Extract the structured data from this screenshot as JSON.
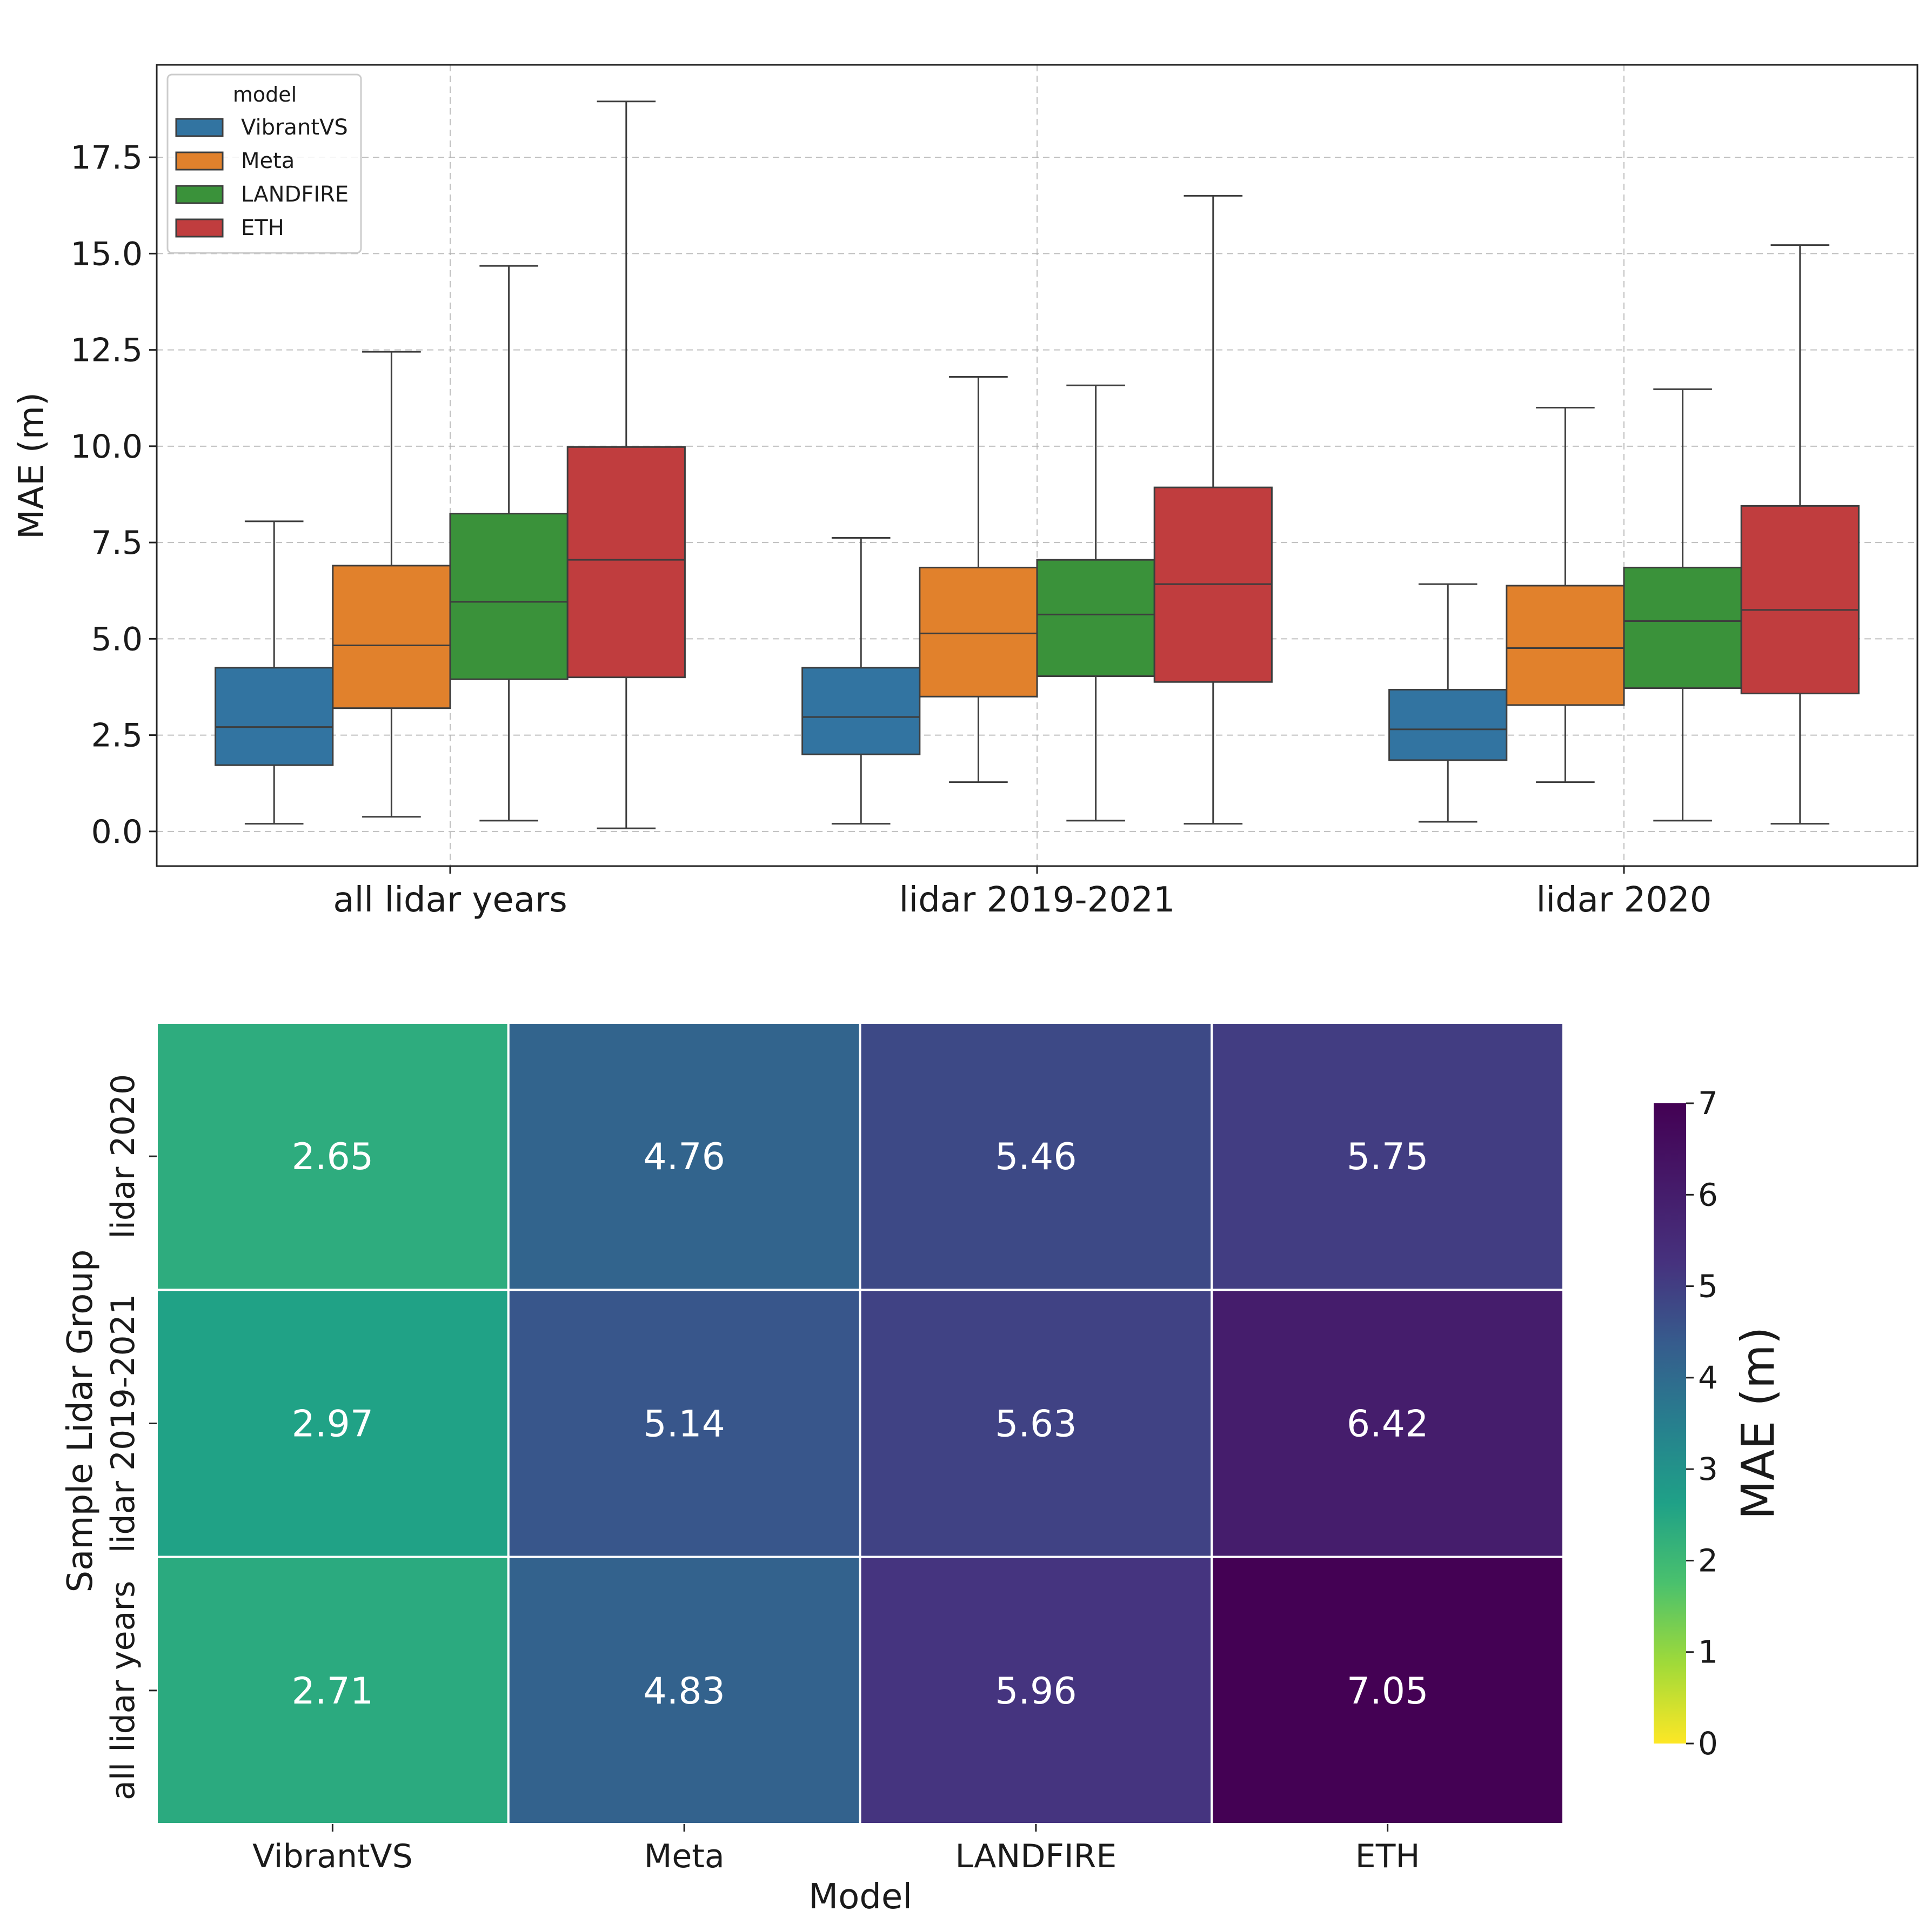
{
  "chart_data": [
    {
      "type": "box",
      "title": "",
      "xlabel": "",
      "ylabel": "MAE (m)",
      "ylim": [
        -0.9,
        19.9
      ],
      "yticks": [
        0.0,
        2.5,
        5.0,
        7.5,
        10.0,
        12.5,
        15.0,
        17.5
      ],
      "ytick_labels": [
        "0.0",
        "2.5",
        "5.0",
        "7.5",
        "10.0",
        "12.5",
        "15.0",
        "17.5"
      ],
      "grid": true,
      "legend": {
        "title": "model",
        "position": "top-left"
      },
      "categories": [
        "all lidar years",
        "lidar 2019-2021",
        "lidar 2020"
      ],
      "series": [
        {
          "name": "VibrantVS",
          "color": "#3274a1",
          "boxes": [
            {
              "whislo": 0.2,
              "q1": 1.72,
              "med": 2.71,
              "q3": 4.25,
              "whishi": 8.05
            },
            {
              "whislo": 0.2,
              "q1": 2.0,
              "med": 2.97,
              "q3": 4.25,
              "whishi": 7.62
            },
            {
              "whislo": 0.25,
              "q1": 1.85,
              "med": 2.65,
              "q3": 3.68,
              "whishi": 6.42
            }
          ]
        },
        {
          "name": "Meta",
          "color": "#e1812c",
          "boxes": [
            {
              "whislo": 0.38,
              "q1": 3.2,
              "med": 4.83,
              "q3": 6.9,
              "whishi": 12.45
            },
            {
              "whislo": 1.28,
              "q1": 3.5,
              "med": 5.14,
              "q3": 6.85,
              "whishi": 11.8
            },
            {
              "whislo": 1.28,
              "q1": 3.28,
              "med": 4.76,
              "q3": 6.38,
              "whishi": 11.0
            }
          ]
        },
        {
          "name": "LANDFIRE",
          "color": "#3a923a",
          "boxes": [
            {
              "whislo": 0.28,
              "q1": 3.95,
              "med": 5.96,
              "q3": 8.25,
              "whishi": 14.68
            },
            {
              "whislo": 0.28,
              "q1": 4.03,
              "med": 5.63,
              "q3": 7.05,
              "whishi": 11.58
            },
            {
              "whislo": 0.28,
              "q1": 3.72,
              "med": 5.46,
              "q3": 6.85,
              "whishi": 11.48
            }
          ]
        },
        {
          "name": "ETH",
          "color": "#c03d3e",
          "boxes": [
            {
              "whislo": 0.08,
              "q1": 4.0,
              "med": 7.05,
              "q3": 9.98,
              "whishi": 18.95
            },
            {
              "whislo": 0.2,
              "q1": 3.88,
              "med": 6.42,
              "q3": 8.93,
              "whishi": 16.5
            },
            {
              "whislo": 0.2,
              "q1": 3.58,
              "med": 5.75,
              "q3": 8.45,
              "whishi": 15.22
            }
          ]
        }
      ]
    },
    {
      "type": "heatmap",
      "xlabel": "Model",
      "ylabel": "Sample Lidar Group",
      "x_categories": [
        "VibrantVS",
        "Meta",
        "LANDFIRE",
        "ETH"
      ],
      "y_categories": [
        "lidar 2020",
        "lidar 2019-2021",
        "all lidar years"
      ],
      "values": [
        [
          2.65,
          4.76,
          5.46,
          5.75
        ],
        [
          2.97,
          5.14,
          5.63,
          6.42
        ],
        [
          2.71,
          4.83,
          5.96,
          7.05
        ]
      ],
      "cell_labels": [
        [
          "2.65",
          "4.76",
          "5.46",
          "5.75"
        ],
        [
          "2.97",
          "5.14",
          "5.63",
          "6.42"
        ],
        [
          "2.71",
          "4.83",
          "5.96",
          "7.05"
        ]
      ],
      "colorbar": {
        "label": "MAE (m)",
        "range": [
          0,
          7
        ],
        "ticks": [
          0,
          1,
          2,
          3,
          4,
          5,
          6,
          7
        ],
        "tick_labels": [
          "0",
          "1",
          "2",
          "3",
          "4",
          "5",
          "6",
          "7"
        ],
        "colormap": "viridis_r"
      }
    }
  ]
}
